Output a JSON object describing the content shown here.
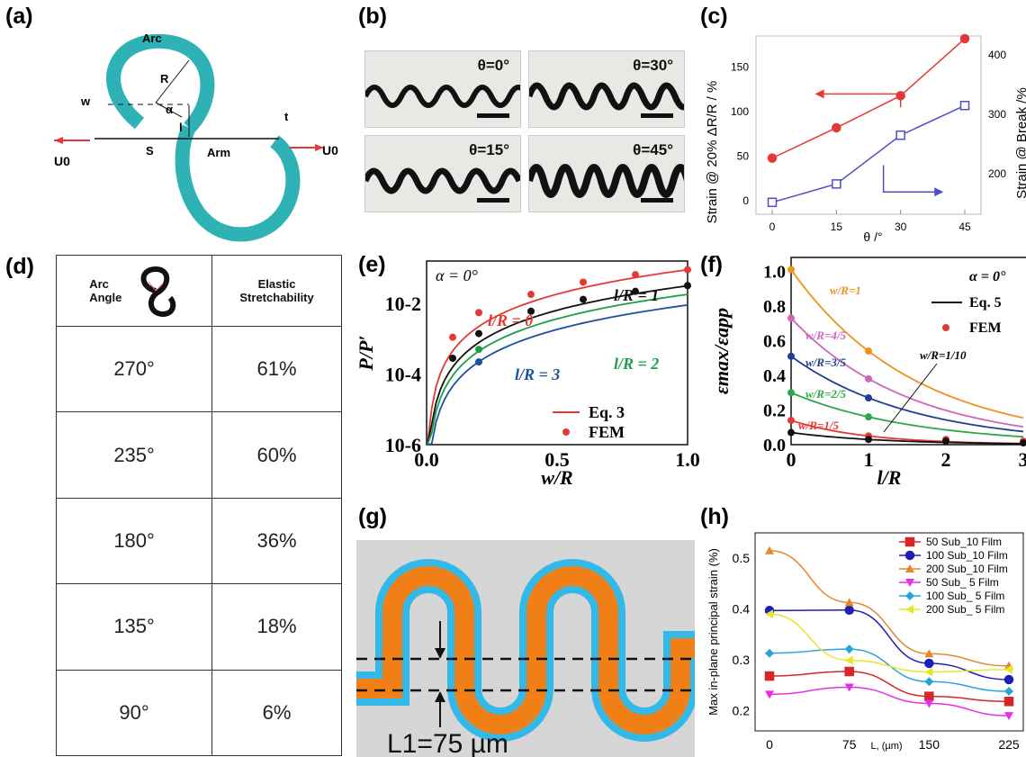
{
  "panels": {
    "a": {
      "label": "(a)",
      "arc": "Arc",
      "w": "w",
      "R": "R",
      "alpha": "α",
      "U0_left": "U0",
      "U0_right": "U0",
      "S": "S",
      "l": "l",
      "Arm": "Arm",
      "t": "t"
    },
    "b": {
      "label": "(b)",
      "photos": [
        {
          "theta": "θ=0°"
        },
        {
          "theta": "θ=30°"
        },
        {
          "theta": "θ=15°"
        },
        {
          "theta": "θ=45°"
        }
      ]
    },
    "c": {
      "label": "(c)"
    },
    "d": {
      "label": "(d)",
      "header_col1": "Arc\nAngle",
      "header_col2": "Elastic\nStretchability",
      "rows": [
        {
          "angle": "270°",
          "stretch": "61%"
        },
        {
          "angle": "235°",
          "stretch": "60%"
        },
        {
          "angle": "180°",
          "stretch": "36%"
        },
        {
          "angle": "135°",
          "stretch": "18%"
        },
        {
          "angle": "90°",
          "stretch": "6%"
        }
      ]
    },
    "e": {
      "label": "(e)"
    },
    "f": {
      "label": "(f)"
    },
    "g": {
      "label": "(g)",
      "dimension": "L1=75 µm"
    },
    "h": {
      "label": "(h)"
    }
  },
  "chart_data": [
    {
      "id": "c",
      "type": "line",
      "xlabel": "θ /°",
      "ylabel_left": "Strain @ 20% ΔR/R / %",
      "ylabel_right": "Strain @ Break /%",
      "x": [
        0,
        15,
        30,
        45
      ],
      "xticks": [
        "0",
        "15",
        "30",
        "45"
      ],
      "yticks_left": [
        "0",
        "50",
        "100",
        "150"
      ],
      "yticks_right": [
        "200",
        "300",
        "400"
      ],
      "ylim_left": [
        -15,
        185
      ],
      "ylim_right": [
        132,
        432
      ],
      "series": [
        {
          "axis": "left",
          "color": "#e53935",
          "marker": "circle",
          "values": [
            48,
            82,
            118,
            182
          ]
        },
        {
          "axis": "right",
          "color": "#4e4ec8",
          "marker": "square",
          "values": [
            152,
            183,
            265,
            315
          ]
        }
      ],
      "legend": "arrows"
    },
    {
      "id": "e",
      "type": "line",
      "xlabel": "w/R",
      "ylabel": "P/P′",
      "annotation": "α = 0°",
      "xlim": [
        0,
        1
      ],
      "ylim_log": [
        -6,
        -0.8
      ],
      "xticks": [
        "0.0",
        "0.5",
        "1.0"
      ],
      "yticks": [
        "10-6",
        "10-4",
        "10-2"
      ],
      "series": [
        {
          "name": "l/R = 0",
          "color": "#e53935",
          "fem": [
            [
              0.1,
              0.0011
            ],
            [
              0.2,
              0.0055
            ],
            [
              0.4,
              0.018
            ],
            [
              0.6,
              0.04
            ],
            [
              0.8,
              0.065
            ],
            [
              1.0,
              0.09
            ]
          ]
        },
        {
          "name": "l/R = 1",
          "color": "#111111",
          "fem": [
            [
              0.1,
              0.00028
            ],
            [
              0.2,
              0.0014
            ],
            [
              0.4,
              0.006
            ],
            [
              0.6,
              0.013
            ],
            [
              0.8,
              0.022
            ],
            [
              1.0,
              0.032
            ]
          ]
        },
        {
          "name": "l/R = 2",
          "color": "#1e9e4a",
          "fem": [
            [
              0.2,
              0.0005
            ]
          ]
        },
        {
          "name": "l/R = 3",
          "color": "#1f4fa0",
          "fem": [
            [
              0.2,
              0.00022
            ]
          ]
        }
      ],
      "legend": [
        {
          "name": "Eq. 3",
          "style": "line",
          "color": "#e53935"
        },
        {
          "name": "FEM",
          "style": "dot",
          "color": "#e53935"
        }
      ]
    },
    {
      "id": "f",
      "type": "line",
      "xlabel": "l/R",
      "ylabel": "εmax/εapp",
      "annotation": "α = 0°",
      "xlim": [
        0,
        3
      ],
      "ylim": [
        0,
        1.08
      ],
      "xticks": [
        "0",
        "1",
        "2",
        "3"
      ],
      "yticks": [
        "0.0",
        "0.2",
        "0.4",
        "0.6",
        "0.8",
        "1.0"
      ],
      "series": [
        {
          "name": "w/R=1",
          "color": "#f0901e",
          "fem": [
            [
              0,
              1.01
            ],
            [
              1,
              0.54
            ]
          ]
        },
        {
          "name": "w/R=4/5",
          "color": "#cc66bb",
          "fem": [
            [
              0,
              0.73
            ],
            [
              1,
              0.38
            ]
          ]
        },
        {
          "name": "w/R=3/5",
          "color": "#1f3f90",
          "fem": [
            [
              0,
              0.51
            ],
            [
              1,
              0.27
            ]
          ]
        },
        {
          "name": "w/R=2/5",
          "color": "#2aa84a",
          "fem": [
            [
              0,
              0.3
            ],
            [
              1,
              0.16
            ]
          ]
        },
        {
          "name": "w/R=1/5",
          "color": "#e53935",
          "fem": [
            [
              0,
              0.14
            ],
            [
              1,
              0.05
            ],
            [
              2,
              0.03
            ],
            [
              3,
              0.02
            ]
          ]
        },
        {
          "name": "w/R=1/10",
          "color": "#111111",
          "fem": [
            [
              0,
              0.07
            ],
            [
              1,
              0.03
            ],
            [
              2,
              0.02
            ],
            [
              3,
              0.01
            ]
          ]
        }
      ],
      "legend": [
        {
          "name": "Eq. 5",
          "style": "line",
          "color": "#111111"
        },
        {
          "name": "FEM",
          "style": "dot",
          "color": "#e53935"
        }
      ]
    },
    {
      "id": "h",
      "type": "line",
      "xlabel": "L, (µm)",
      "ylabel": "Max in-plane principal strain (%)",
      "x": [
        0,
        75,
        150,
        225
      ],
      "xticks": [
        "0",
        "75",
        "150",
        "225"
      ],
      "ylim": [
        0.16,
        0.55
      ],
      "yticks": [
        "0.2",
        "0.3",
        "0.4",
        "0.5"
      ],
      "series": [
        {
          "name": "50 Sub_10 Film",
          "color": "#d62728",
          "marker": "square",
          "values": [
            0.268,
            0.277,
            0.228,
            0.218
          ]
        },
        {
          "name": "100 Sub_10 Film",
          "color": "#1f1fb4",
          "marker": "circle",
          "values": [
            0.397,
            0.398,
            0.293,
            0.261
          ]
        },
        {
          "name": "200 Sub_10 Film",
          "color": "#e6862a",
          "marker": "triangle",
          "values": [
            0.515,
            0.413,
            0.312,
            0.288
          ]
        },
        {
          "name": "50 Sub_ 5 Film",
          "color": "#e62ee6",
          "marker": "tri-down",
          "values": [
            0.232,
            0.246,
            0.214,
            0.19
          ]
        },
        {
          "name": "100 Sub_ 5 Film",
          "color": "#2aa3d8",
          "marker": "diamond",
          "values": [
            0.313,
            0.321,
            0.257,
            0.238
          ]
        },
        {
          "name": "200 Sub_ 5 Film",
          "color": "#e6e62a",
          "marker": "tri-left",
          "values": [
            0.39,
            0.299,
            0.276,
            0.281
          ]
        }
      ]
    }
  ]
}
